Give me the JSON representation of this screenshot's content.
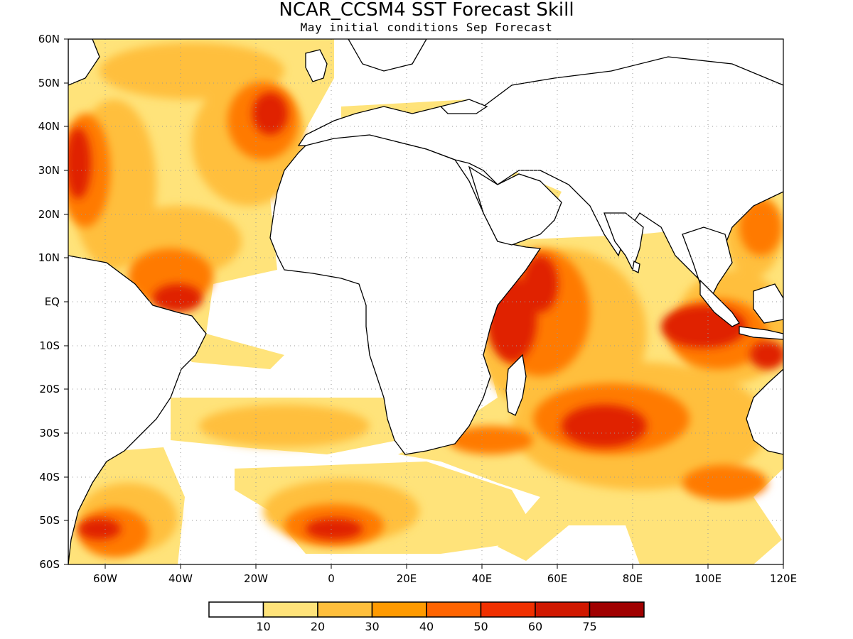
{
  "title": "NCAR_CCSM4 SST Forecast Skill",
  "subtitle": "May initial conditions  Sep Forecast",
  "lat_labels": [
    "60N",
    "50N",
    "40N",
    "30N",
    "20N",
    "10N",
    "EQ",
    "10S",
    "20S",
    "30S",
    "40S",
    "50S",
    "60S"
  ],
  "lon_labels": [
    "60W",
    "40W",
    "20W",
    "0",
    "20E",
    "40E",
    "60E",
    "80E",
    "100E",
    "120E"
  ],
  "colorbar": {
    "thresholds": [
      "10",
      "20",
      "30",
      "40",
      "50",
      "60",
      "75"
    ],
    "colors": [
      "#ffffff",
      "#ffe37a",
      "#ffbf3c",
      "#ff9a00",
      "#ff6400",
      "#f03000",
      "#d01800",
      "#a00000"
    ]
  },
  "colors": {
    "background": "#ffffff",
    "land_outline": "#000000",
    "grid": "#9a9a9a"
  }
}
